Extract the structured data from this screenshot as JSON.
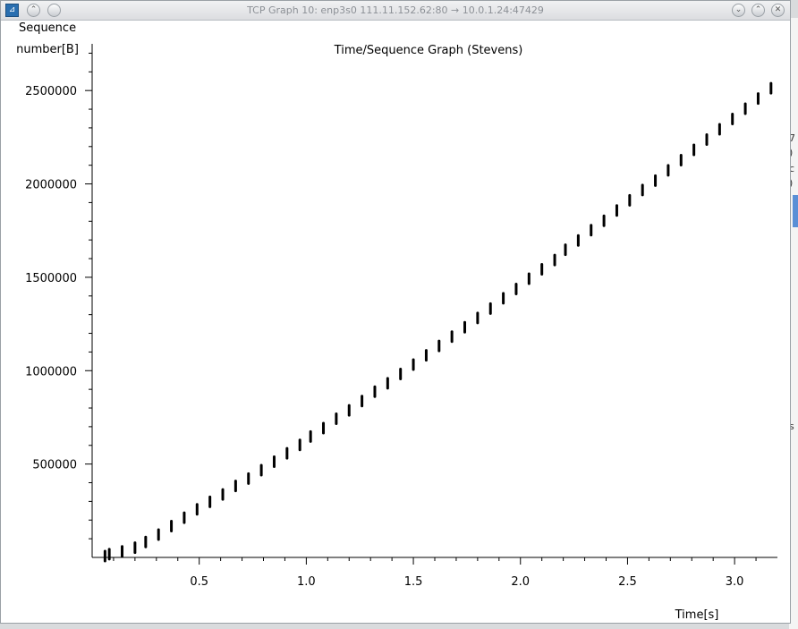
{
  "window": {
    "title": "TCP Graph 10: enp3s0 111.11.152.62:80 → 10.0.1.24:47429",
    "controls": [
      "shade",
      "minimize",
      "maximize",
      "close"
    ]
  },
  "background_fragments": [
    "7",
    ")",
    "c",
    ")",
    "s"
  ],
  "chart_data": {
    "type": "scatter",
    "title": "Time/Sequence Graph (Stevens)",
    "ylabel_lines": [
      "Sequence",
      "number[B]"
    ],
    "xlabel": "Time[s]",
    "xlim": [
      0,
      3.2
    ],
    "ylim": [
      0,
      2750000
    ],
    "x_ticks": [
      0.5,
      1.0,
      1.5,
      2.0,
      2.5,
      3.0
    ],
    "x_tick_labels": [
      "0.5",
      "1.0",
      "1.5",
      "2.0",
      "2.5",
      "3.0"
    ],
    "y_ticks": [
      500000,
      1000000,
      1500000,
      2000000,
      2500000
    ],
    "y_tick_labels": [
      "500000",
      "1000000",
      "1500000",
      "2000000",
      "2500000"
    ],
    "grid": false,
    "marker_color": "#000000",
    "series": [
      {
        "points": [
          [
            0.06,
            5000
          ],
          [
            0.08,
            15000
          ],
          [
            0.14,
            30000
          ],
          [
            0.2,
            50000
          ],
          [
            0.25,
            80000
          ],
          [
            0.31,
            120000
          ],
          [
            0.37,
            165000
          ],
          [
            0.43,
            210000
          ],
          [
            0.49,
            255000
          ],
          [
            0.55,
            295000
          ],
          [
            0.61,
            335000
          ],
          [
            0.67,
            380000
          ],
          [
            0.73,
            420000
          ],
          [
            0.79,
            465000
          ],
          [
            0.85,
            510000
          ],
          [
            0.91,
            555000
          ],
          [
            0.97,
            600000
          ],
          [
            1.02,
            645000
          ],
          [
            1.08,
            690000
          ],
          [
            1.14,
            740000
          ],
          [
            1.2,
            785000
          ],
          [
            1.26,
            835000
          ],
          [
            1.32,
            885000
          ],
          [
            1.38,
            930000
          ],
          [
            1.44,
            980000
          ],
          [
            1.5,
            1030000
          ],
          [
            1.56,
            1080000
          ],
          [
            1.62,
            1130000
          ],
          [
            1.68,
            1180000
          ],
          [
            1.74,
            1230000
          ],
          [
            1.8,
            1280000
          ],
          [
            1.86,
            1330000
          ],
          [
            1.92,
            1385000
          ],
          [
            1.98,
            1435000
          ],
          [
            2.04,
            1490000
          ],
          [
            2.1,
            1540000
          ],
          [
            2.16,
            1590000
          ],
          [
            2.21,
            1645000
          ],
          [
            2.27,
            1695000
          ],
          [
            2.33,
            1750000
          ],
          [
            2.39,
            1800000
          ],
          [
            2.45,
            1855000
          ],
          [
            2.51,
            1910000
          ],
          [
            2.57,
            1965000
          ],
          [
            2.63,
            2015000
          ],
          [
            2.69,
            2070000
          ],
          [
            2.75,
            2125000
          ],
          [
            2.81,
            2180000
          ],
          [
            2.87,
            2235000
          ],
          [
            2.93,
            2290000
          ],
          [
            2.99,
            2345000
          ],
          [
            3.05,
            2400000
          ],
          [
            3.11,
            2455000
          ],
          [
            3.17,
            2510000
          ]
        ]
      }
    ]
  }
}
